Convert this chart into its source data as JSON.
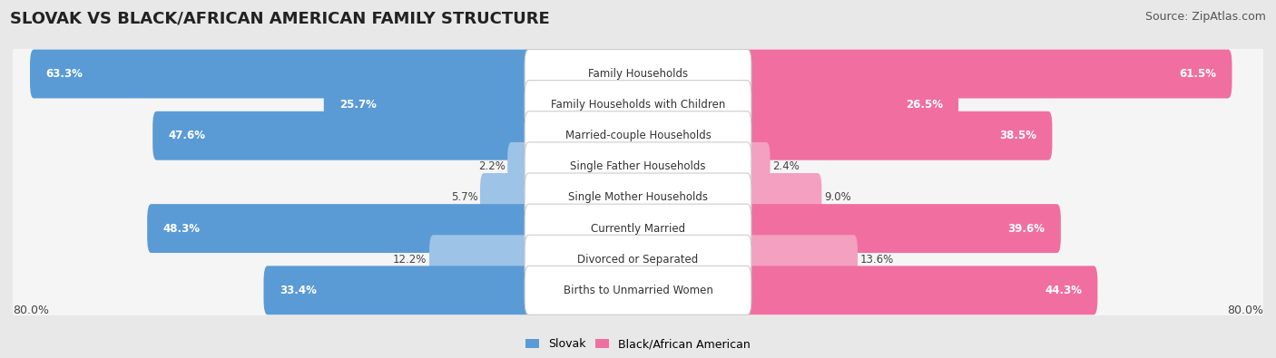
{
  "title": "SLOVAK VS BLACK/AFRICAN AMERICAN FAMILY STRUCTURE",
  "source": "Source: ZipAtlas.com",
  "categories": [
    "Family Households",
    "Family Households with Children",
    "Married-couple Households",
    "Single Father Households",
    "Single Mother Households",
    "Currently Married",
    "Divorced or Separated",
    "Births to Unmarried Women"
  ],
  "slovak_values": [
    63.3,
    25.7,
    47.6,
    2.2,
    5.7,
    48.3,
    12.2,
    33.4
  ],
  "black_values": [
    61.5,
    26.5,
    38.5,
    2.4,
    9.0,
    39.6,
    13.6,
    44.3
  ],
  "max_val": 80.0,
  "slovak_color_dark": "#5b9bd5",
  "slovak_color_light": "#9dc3e6",
  "black_color_dark": "#f06fa0",
  "black_color_light": "#f4a0c0",
  "slovak_label": "Slovak",
  "black_label": "Black/African American",
  "background_color": "#e8e8e8",
  "row_bg_color": "#f5f5f5",
  "title_fontsize": 13,
  "source_fontsize": 9,
  "label_fontsize": 8.5,
  "value_fontsize": 8.5,
  "legend_fontsize": 9,
  "axis_label_fontsize": 9,
  "dark_threshold": 20
}
